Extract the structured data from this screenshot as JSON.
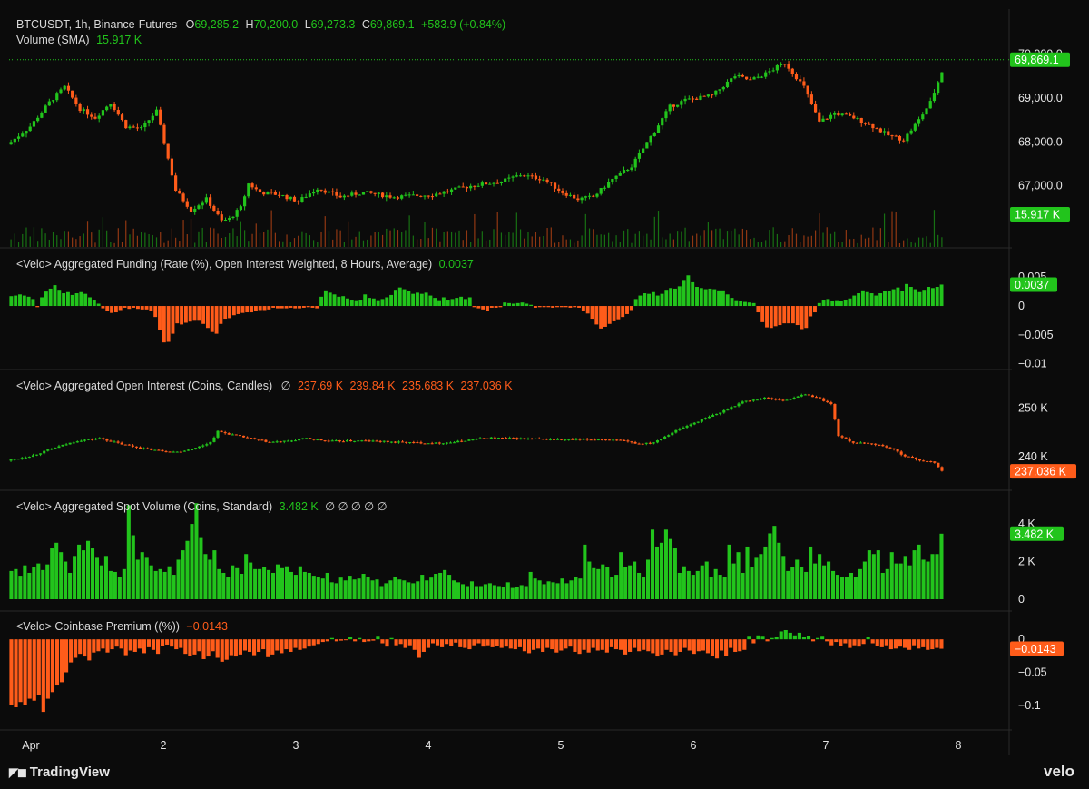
{
  "header": {
    "symbol": "BTCUSDT, 1h, Binance-Futures",
    "o_label": "O",
    "o": "69,285.2",
    "h_label": "H",
    "h": "70,200.0",
    "l_label": "L",
    "l": "69,273.3",
    "c_label": "C",
    "c": "69,869.1",
    "change": "+583.9 (+0.84%)",
    "volume_label": "Volume (SMA)",
    "volume_value": "15.917 K"
  },
  "panes": {
    "funding": {
      "title": "<Velo> Aggregated Funding (Rate (%), Open Interest Weighted, 8 Hours, Average)",
      "value": "0.0037"
    },
    "open_interest": {
      "title": "<Velo> Aggregated Open Interest (Coins, Candles)",
      "null_marker": "∅",
      "o": "237.69 K",
      "h": "239.84 K",
      "l": "235.683 K",
      "c": "237.036 K"
    },
    "spot_volume": {
      "title": "<Velo> Aggregated Spot Volume (Coins, Standard)",
      "value": "3.482 K",
      "null_markers": "∅ ∅ ∅ ∅ ∅"
    },
    "premium": {
      "title": "<Velo> Coinbase Premium ((%))",
      "value": "−0.0143"
    }
  },
  "branding": {
    "left": "TradingView",
    "right": "velo"
  },
  "colors": {
    "up": "#22c41c",
    "down": "#ff5c1a",
    "background": "#0b0b0b",
    "text": "#d9d9d9",
    "axis_text": "#e6e6e6",
    "separator": "#2a2a2a"
  },
  "chart_data": [
    {
      "type": "candlestick",
      "title": "BTCUSDT, 1h, Binance-Futures",
      "x": {
        "type": "time",
        "ticks": [
          "Apr",
          "2",
          "3",
          "4",
          "5",
          "6",
          "7",
          "8"
        ]
      },
      "y_ticks": [
        "67,000.0",
        "68,000.0",
        "69,000.0",
        "70,000.0"
      ],
      "ylim": [
        65900,
        70400
      ],
      "last_price_label": "69,869.1",
      "anchors": [
        [
          0,
          68000
        ],
        [
          5,
          68350
        ],
        [
          10,
          68900
        ],
        [
          14,
          69250
        ],
        [
          18,
          68750
        ],
        [
          22,
          68550
        ],
        [
          26,
          68900
        ],
        [
          30,
          68350
        ],
        [
          34,
          68300
        ],
        [
          38,
          68700
        ],
        [
          43,
          66900
        ],
        [
          47,
          66450
        ],
        [
          51,
          66700
        ],
        [
          55,
          66200
        ],
        [
          57,
          66250
        ],
        [
          60,
          66500
        ],
        [
          62,
          67050
        ],
        [
          65,
          66850
        ],
        [
          70,
          66800
        ],
        [
          75,
          66650
        ],
        [
          80,
          66950
        ],
        [
          86,
          66750
        ],
        [
          92,
          66850
        ],
        [
          100,
          66750
        ],
        [
          110,
          66800
        ],
        [
          120,
          67000
        ],
        [
          128,
          67100
        ],
        [
          133,
          67250
        ],
        [
          139,
          67150
        ],
        [
          144,
          66850
        ],
        [
          148,
          66700
        ],
        [
          152,
          66750
        ],
        [
          157,
          67150
        ],
        [
          162,
          67450
        ],
        [
          168,
          68250
        ],
        [
          172,
          68800
        ],
        [
          176,
          68950
        ],
        [
          183,
          69050
        ],
        [
          189,
          69500
        ],
        [
          193,
          69400
        ],
        [
          197,
          69550
        ],
        [
          202,
          69800
        ],
        [
          207,
          69250
        ],
        [
          211,
          68450
        ],
        [
          215,
          68650
        ],
        [
          220,
          68550
        ],
        [
          225,
          68350
        ],
        [
          229,
          68150
        ],
        [
          233,
          68050
        ],
        [
          237,
          68500
        ],
        [
          240,
          68900
        ],
        [
          243,
          69600
        ]
      ],
      "volume": {
        "sma_label": "15.917 K"
      }
    },
    {
      "type": "bar",
      "title": "<Velo> Aggregated Funding (Rate (%), Open Interest Weighted, 8 Hours, Average)",
      "y_ticks": [
        "0.005",
        "0",
        "−0.005",
        "−0.01"
      ],
      "ylim": [
        -0.0102,
        0.0055
      ],
      "last_value": "0.0037",
      "values": [
        0.0017,
        0.0018,
        0.002,
        0.0018,
        0.0016,
        0.0012,
        -0.0002,
        0.0015,
        0.0025,
        0.003,
        0.0036,
        0.0028,
        0.0022,
        0.0024,
        0.0019,
        0.0022,
        0.0024,
        0.0021,
        0.0015,
        0.0011,
        0.0004,
        -0.0004,
        -0.0009,
        -0.0012,
        -0.0011,
        -0.0007,
        -0.0003,
        -0.0005,
        -0.0003,
        -0.0005,
        -0.0006,
        -0.0006,
        -0.0009,
        -0.0019,
        -0.0041,
        -0.0063,
        -0.0062,
        -0.0048,
        -0.003,
        -0.0032,
        -0.0029,
        -0.0027,
        -0.0024,
        -0.0024,
        -0.0031,
        -0.0038,
        -0.0045,
        -0.0048,
        -0.0031,
        -0.0022,
        -0.0021,
        -0.0016,
        -0.0014,
        -0.0012,
        -0.0011,
        -0.0011,
        -0.0009,
        -0.0007,
        -0.0007,
        -0.0006,
        -0.0003,
        -0.0004,
        -0.0004,
        -0.0004,
        -0.0003,
        -0.0004,
        -0.0004,
        -0.0003,
        -0.0002,
        -0.0003,
        -0.0004,
        0.0016,
        0.0027,
        0.0023,
        0.002,
        0.0016,
        0.0017,
        0.0013,
        0.0011,
        0.001,
        0.0011,
        0.002,
        0.0014,
        0.0013,
        0.001,
        0.0012,
        0.0015,
        0.0019,
        0.0028,
        0.0032,
        0.0029,
        0.0026,
        0.0021,
        0.0023,
        0.0021,
        0.0023,
        0.0018,
        0.0014,
        0.001,
        0.0015,
        0.0011,
        0.0012,
        0.0014,
        0.0016,
        0.0012,
        0.0015,
        -0.0002,
        -0.0004,
        -0.0006,
        -0.0009,
        -0.0003,
        -0.0003,
        -0.0002,
        0.0006,
        0.0005,
        0.0004,
        0.0005,
        0.0006,
        0.0004,
        0.0002,
        -0.0003,
        -0.0002,
        -0.0002,
        -0.0002,
        -0.0003,
        -0.0002,
        -0.0002,
        -0.0002,
        -0.0003,
        -0.0002,
        -0.0003,
        -0.0008,
        -0.0013,
        -0.0022,
        -0.0032,
        -0.0039,
        -0.0036,
        -0.0031,
        -0.0025,
        -0.0023,
        -0.0019,
        -0.0014,
        -0.0007,
        0.0012,
        0.0018,
        0.0022,
        0.0021,
        0.0024,
        0.0018,
        0.0021,
        0.0028,
        0.0031,
        0.003,
        0.0034,
        0.0045,
        0.0053,
        0.0041,
        0.0033,
        0.0031,
        0.0029,
        0.003,
        0.0029,
        0.0027,
        0.0027,
        0.002,
        0.0014,
        0.001,
        0.0008,
        0.0007,
        0.0006,
        0.0005,
        -0.0011,
        -0.0028,
        -0.0037,
        -0.0038,
        -0.0035,
        -0.0033,
        -0.003,
        -0.003,
        -0.003,
        -0.0033,
        -0.004,
        -0.0038,
        -0.0018,
        -0.0011,
        0.0005,
        0.0011,
        0.0012,
        0.0009,
        0.001,
        0.0008,
        0.0011,
        0.0013,
        0.0018,
        0.0022,
        0.0027,
        0.0024,
        0.0022,
        0.0018,
        0.0022,
        0.0026,
        0.0026,
        0.0029,
        0.0032,
        0.0026,
        0.0038,
        0.0033,
        0.0029,
        0.0024,
        0.0028,
        0.0033,
        0.0031,
        0.0033,
        0.0037
      ]
    },
    {
      "type": "candlestick",
      "title": "<Velo> Aggregated Open Interest (Coins, Candles)",
      "y_ticks": [
        "240 K",
        "250 K"
      ],
      "ylim": [
        235000,
        255500
      ],
      "last_value": "237.036 K",
      "anchors": [
        [
          0,
          239400
        ],
        [
          6,
          240300
        ],
        [
          12,
          241900
        ],
        [
          18,
          243300
        ],
        [
          24,
          243800
        ],
        [
          30,
          242600
        ],
        [
          36,
          241700
        ],
        [
          40,
          241300
        ],
        [
          45,
          241000
        ],
        [
          50,
          241800
        ],
        [
          54,
          243000
        ],
        [
          56,
          245200
        ],
        [
          62,
          244200
        ],
        [
          70,
          243000
        ],
        [
          75,
          243200
        ],
        [
          80,
          243800
        ],
        [
          86,
          243200
        ],
        [
          95,
          243300
        ],
        [
          105,
          243000
        ],
        [
          115,
          242800
        ],
        [
          120,
          243000
        ],
        [
          125,
          243600
        ],
        [
          130,
          243900
        ],
        [
          140,
          243700
        ],
        [
          150,
          243500
        ],
        [
          160,
          243600
        ],
        [
          165,
          243300
        ],
        [
          170,
          242700
        ],
        [
          174,
          243000
        ],
        [
          180,
          245400
        ],
        [
          186,
          247300
        ],
        [
          192,
          249100
        ],
        [
          198,
          251300
        ],
        [
          204,
          252100
        ],
        [
          210,
          251600
        ],
        [
          214,
          252800
        ],
        [
          218,
          252300
        ],
        [
          222,
          250800
        ],
        [
          224,
          244400
        ],
        [
          228,
          242900
        ],
        [
          234,
          242600
        ],
        [
          238,
          241800
        ],
        [
          242,
          240200
        ],
        [
          246,
          239300
        ],
        [
          250,
          238800
        ],
        [
          252,
          237036
        ]
      ]
    },
    {
      "type": "bar",
      "title": "<Velo> Aggregated Spot Volume (Coins, Standard)",
      "y_ticks": [
        "0",
        "2 K",
        "4 K"
      ],
      "ylim": [
        0,
        4100
      ],
      "last_value": "3.482 K",
      "values": [
        1500,
        1600,
        1250,
        1800,
        1400,
        1700,
        1900,
        1550,
        1850,
        2700,
        3000,
        2500,
        2000,
        1400,
        2300,
        2900,
        2600,
        3100,
        2700,
        2200,
        1800,
        2300,
        1500,
        1450,
        1200,
        1600,
        5000,
        3400,
        2100,
        2500,
        2200,
        1800,
        1500,
        1600,
        1450,
        1750,
        1300,
        2100,
        2600,
        3100,
        4000,
        5100,
        3300,
        2400,
        2100,
        2600,
        1600,
        1400,
        1200,
        1800,
        1650,
        1350,
        2400,
        1950,
        1600,
        1600,
        1700,
        1550,
        1400,
        1850,
        1650,
        1750,
        1450,
        1300,
        1750,
        1450,
        1400,
        1250,
        1200,
        1100,
        1400,
        900,
        850,
        1150,
        1000,
        1250,
        1050,
        1100,
        1350,
        1200,
        1000,
        1050,
        700,
        850,
        1000,
        1200,
        1050,
        1000,
        900,
        850,
        950,
        1300,
        1000,
        1150,
        1350,
        1400,
        1550,
        1300,
        1000,
        900,
        800,
        700,
        950,
        700,
        700,
        800,
        850,
        750,
        700,
        650,
        900,
        600,
        650,
        750,
        700,
        1450,
        1100,
        1000,
        800,
        950,
        900,
        850,
        1100,
        850,
        1000,
        1200,
        1100,
        2900,
        2000,
        1650,
        1600,
        1850,
        1700,
        1200,
        1300,
        2500,
        1700,
        1800,
        2000,
        1400,
        1200,
        2100,
        3700,
        2800,
        3000,
        3700,
        3200,
        2700,
        1400,
        1750,
        1500,
        1300,
        1500,
        1800,
        2000,
        1200,
        1600,
        1300,
        1200,
        2900,
        1900,
        2500,
        1400,
        2800,
        1700,
        2200,
        2400,
        2800,
        3500,
        3900,
        3000,
        2300,
        1500,
        1700,
        2100,
        1700,
        1450,
        2800,
        1900,
        2400,
        1800,
        2000,
        1500,
        1300,
        1200,
        1200,
        1400,
        1200,
        1600,
        2000,
        2600,
        2400,
        2600,
        1400,
        1600,
        2500,
        1900,
        1900,
        2300,
        1800,
        2600,
        2900,
        2100,
        2000,
        2400,
        2400,
        3482
      ]
    },
    {
      "type": "bar",
      "title": "<Velo> Coinbase Premium ((%))",
      "y_ticks": [
        "0",
        "−0.05",
        "−0.1"
      ],
      "ylim": [
        -0.125,
        0.025
      ],
      "last_value": "−0.0143",
      "values": [
        -0.1,
        -0.103,
        -0.095,
        -0.1,
        -0.09,
        -0.093,
        -0.085,
        -0.11,
        -0.09,
        -0.08,
        -0.07,
        -0.065,
        -0.05,
        -0.035,
        -0.028,
        -0.022,
        -0.026,
        -0.032,
        -0.02,
        -0.018,
        -0.014,
        -0.02,
        -0.015,
        -0.011,
        -0.014,
        -0.024,
        -0.017,
        -0.019,
        -0.014,
        -0.021,
        -0.012,
        -0.016,
        -0.022,
        -0.01,
        -0.008,
        -0.011,
        -0.015,
        -0.013,
        -0.022,
        -0.025,
        -0.023,
        -0.018,
        -0.03,
        -0.026,
        -0.018,
        -0.028,
        -0.034,
        -0.031,
        -0.024,
        -0.026,
        -0.023,
        -0.017,
        -0.019,
        -0.024,
        -0.019,
        -0.015,
        -0.027,
        -0.023,
        -0.017,
        -0.021,
        -0.015,
        -0.019,
        -0.013,
        -0.016,
        -0.014,
        -0.011,
        -0.009,
        -0.007,
        -0.004,
        -0.003,
        0.002,
        -0.003,
        -0.002,
        -0.001,
        0.003,
        -0.003,
        0.002,
        -0.004,
        -0.003,
        -0.002,
        0.004,
        -0.006,
        -0.011,
        0.002,
        -0.009,
        -0.007,
        -0.013,
        -0.009,
        -0.016,
        -0.028,
        -0.019,
        -0.013,
        -0.006,
        -0.009,
        -0.012,
        -0.007,
        -0.01,
        -0.005,
        -0.012,
        -0.013,
        -0.015,
        -0.009,
        -0.006,
        -0.011,
        -0.009,
        -0.012,
        -0.01,
        -0.013,
        -0.011,
        -0.014,
        -0.015,
        -0.012,
        -0.018,
        -0.021,
        -0.016,
        -0.014,
        -0.019,
        -0.013,
        -0.015,
        -0.02,
        -0.017,
        -0.014,
        -0.011,
        -0.019,
        -0.022,
        -0.016,
        -0.02,
        -0.013,
        -0.017,
        -0.016,
        -0.02,
        -0.012,
        -0.015,
        -0.016,
        -0.023,
        -0.019,
        -0.013,
        -0.018,
        -0.016,
        -0.018,
        -0.021,
        -0.026,
        -0.023,
        -0.016,
        -0.019,
        -0.024,
        -0.019,
        -0.013,
        -0.017,
        -0.022,
        -0.018,
        -0.017,
        -0.021,
        -0.025,
        -0.029,
        -0.017,
        -0.025,
        -0.013,
        -0.019,
        -0.018,
        -0.016,
        0.004,
        -0.006,
        0.006,
        0.004,
        -0.003,
        0.002,
        0.003,
        0.012,
        0.014,
        0.01,
        0.006,
        0.01,
        0.003,
        0.005,
        -0.003,
        0.002,
        0.004,
        -0.003,
        -0.009,
        -0.004,
        -0.01,
        -0.006,
        -0.013,
        -0.009,
        -0.011,
        -0.007,
        0.003,
        -0.006,
        -0.01,
        -0.012,
        -0.009,
        -0.015,
        -0.014,
        -0.011,
        -0.013,
        -0.016,
        -0.009,
        -0.014,
        -0.012,
        -0.016,
        -0.015,
        -0.013,
        -0.0143
      ]
    }
  ]
}
